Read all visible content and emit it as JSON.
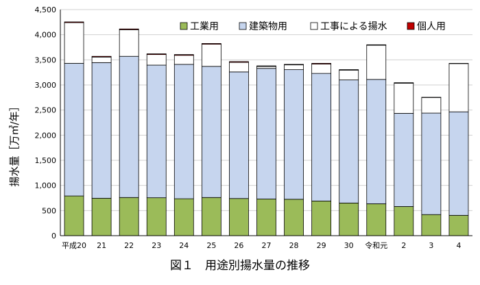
{
  "figure_caption": "図１　用途別揚水量の推移",
  "chart_data": {
    "type": "bar",
    "stacked": true,
    "ylabel": "揚水量［万㎥/年］",
    "ylim": [
      0,
      4500
    ],
    "yticks": [
      0,
      500,
      1000,
      1500,
      2000,
      2500,
      3000,
      3500,
      4000,
      4500
    ],
    "ytick_labels": [
      "0",
      "500",
      "1,000",
      "1,500",
      "2,000",
      "2,500",
      "3,000",
      "3,500",
      "4,000",
      "4,500"
    ],
    "grid": true,
    "legend_position": "top-right",
    "categories": [
      "平成20",
      "21",
      "22",
      "23",
      "24",
      "25",
      "26",
      "27",
      "28",
      "29",
      "30",
      "令和元",
      "2",
      "3",
      "4"
    ],
    "series": [
      {
        "name": "工業用",
        "color": "#9BBB59",
        "values": [
          790,
          745,
          760,
          755,
          735,
          760,
          740,
          730,
          725,
          690,
          650,
          635,
          580,
          420,
          405
        ]
      },
      {
        "name": "建築物用",
        "color": "#C6D5EE",
        "values": [
          2640,
          2700,
          2810,
          2640,
          2675,
          2610,
          2520,
          2600,
          2580,
          2540,
          2450,
          2475,
          1855,
          2020,
          2060
        ]
      },
      {
        "name": "工事による揚水",
        "color": "#FFFFFF",
        "values": [
          810,
          110,
          530,
          210,
          180,
          440,
          190,
          40,
          95,
          185,
          195,
          680,
          600,
          310,
          960
        ]
      },
      {
        "name": "個人用",
        "color": "#C00000",
        "values": [
          15,
          15,
          15,
          15,
          15,
          15,
          15,
          10,
          10,
          15,
          10,
          10,
          10,
          5,
          5
        ]
      }
    ]
  }
}
